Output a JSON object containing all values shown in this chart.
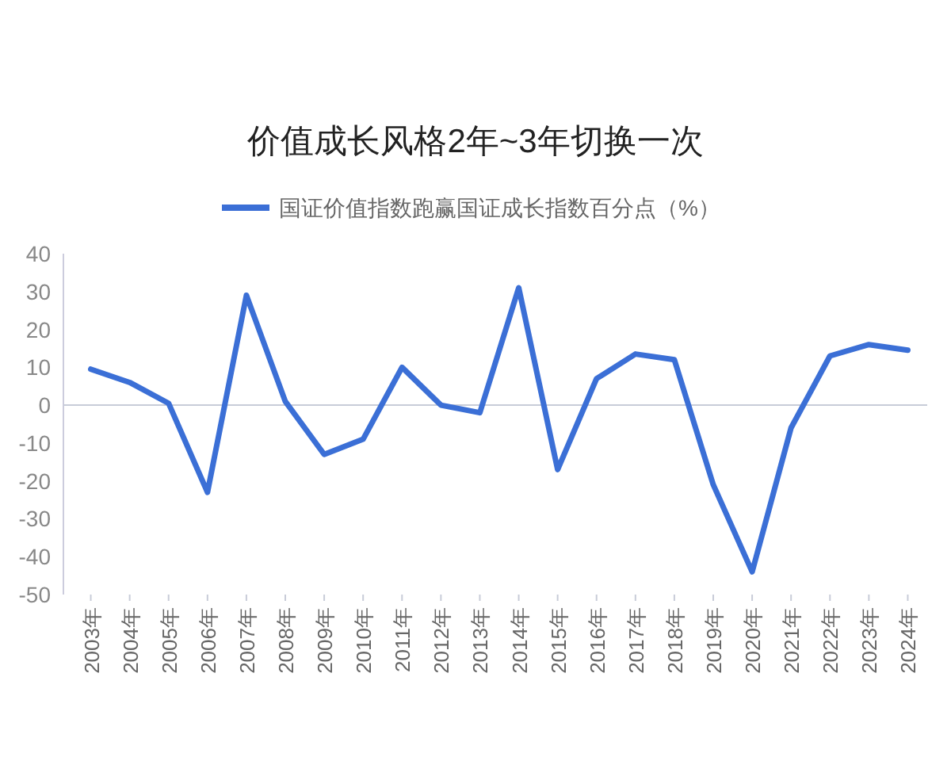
{
  "chart_data": {
    "type": "line",
    "title": "价值成长风格2年~3年切换一次",
    "categories": [
      "2003年",
      "2004年",
      "2005年",
      "2006年",
      "2007年",
      "2008年",
      "2009年",
      "2010年",
      "2011年",
      "2012年",
      "2013年",
      "2014年",
      "2015年",
      "2016年",
      "2017年",
      "2018年",
      "2019年",
      "2020年",
      "2021年",
      "2022年",
      "2023年",
      "2024年"
    ],
    "series": [
      {
        "name": "国证价值指数跑赢国证成长指数百分点（%）",
        "color": "#3b6fd6",
        "values": [
          9.5,
          6,
          0.5,
          -23,
          29,
          1,
          -13,
          -9,
          10,
          0,
          -2,
          31,
          -17,
          7,
          13.5,
          12,
          -21,
          -44,
          -6,
          13,
          16,
          14.5
        ]
      }
    ],
    "ylim": [
      -50,
      40
    ],
    "yticks": [
      -50,
      -40,
      -30,
      -20,
      -10,
      0,
      10,
      20,
      30,
      40
    ],
    "grid": false,
    "ref_lines": [
      {
        "axis": "y",
        "value": 0,
        "color": "#c8ccd8"
      }
    ],
    "legend": "top",
    "marker": "none",
    "line_style": "solid"
  }
}
